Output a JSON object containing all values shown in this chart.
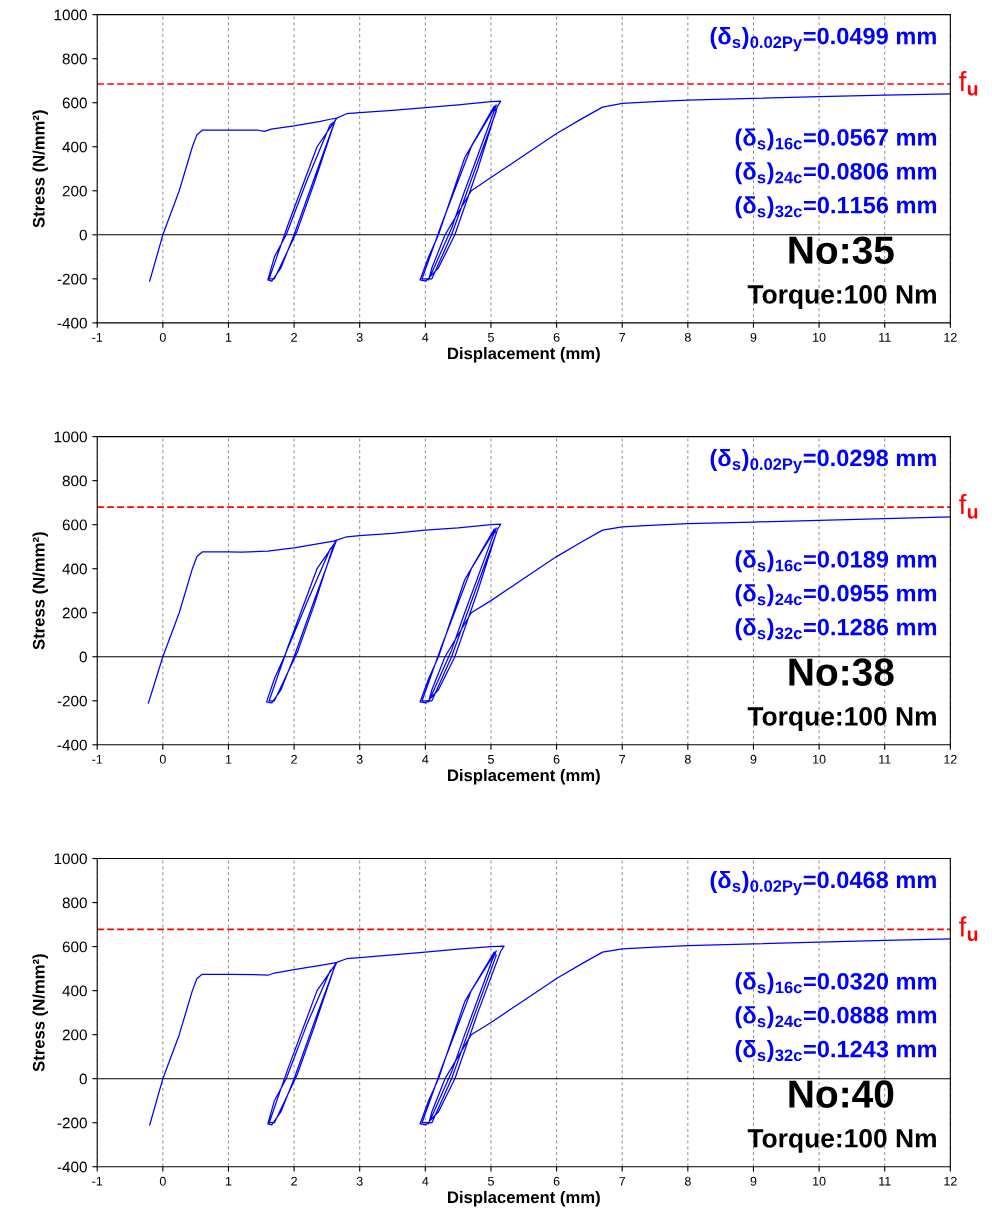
{
  "chart_data": [
    {
      "type": "line",
      "xlabel": "Displacement (mm)",
      "ylabel": "Stress (N/mm²)",
      "xlim": [
        -1,
        12
      ],
      "xticks": [
        -1,
        0,
        1,
        2,
        3,
        4,
        5,
        6,
        7,
        8,
        9,
        10,
        11,
        12
      ],
      "ylim": [
        -400,
        1000
      ],
      "yticks": [
        -400,
        -200,
        0,
        200,
        400,
        600,
        800,
        1000
      ],
      "grid": "x",
      "legend": false,
      "series": [
        {
          "color": "#0000ff",
          "x": [
            -0.2,
            0,
            0.25,
            0.45,
            0.52,
            0.6,
            1.0,
            1.45,
            1.55,
            1.65,
            2.0,
            2.4,
            2.55,
            2.65,
            2.62,
            2.3,
            2.0,
            1.8,
            1.66,
            1.6,
            1.7,
            1.88,
            2.2,
            2.55,
            2.62,
            2.3,
            2.05,
            1.7,
            1.62,
            1.9,
            2.35,
            2.65,
            2.8,
            3.0,
            3.5,
            4.0,
            4.5,
            5.0,
            5.15,
            5.1,
            4.8,
            4.45,
            4.2,
            4.01,
            3.92,
            4.05,
            4.2,
            4.6,
            5.05,
            5.08,
            4.7,
            4.4,
            4.1,
            3.95,
            4.25,
            4.7,
            5.08,
            5.02,
            4.6,
            4.4,
            4.05,
            4.1,
            4.3,
            4.5,
            4.7,
            5.0,
            5.5,
            6.0,
            6.4,
            6.7,
            7.0,
            7.5,
            8,
            9,
            10,
            11,
            12
          ],
          "values": [
            -210,
            0,
            200,
            400,
            455,
            475,
            475,
            475,
            470,
            480,
            495,
            515,
            525,
            530,
            515,
            250,
            0,
            -150,
            -210,
            -205,
            -100,
            0,
            250,
            500,
            515,
            230,
            20,
            -200,
            -200,
            40,
            400,
            530,
            550,
            555,
            565,
            578,
            590,
            605,
            607,
            585,
            300,
            0,
            -150,
            -210,
            -205,
            -100,
            0,
            350,
            585,
            560,
            250,
            0,
            -200,
            -200,
            50,
            400,
            590,
            540,
            200,
            30,
            -205,
            -150,
            0,
            100,
            200,
            260,
            360,
            460,
            530,
            580,
            597,
            605,
            612,
            620,
            628,
            634,
            640
          ]
        }
      ],
      "ref_lines": [
        {
          "axis": "y",
          "value": 685,
          "label": "f$_{u}$",
          "color": "#ff0000",
          "line_style": "dashed"
        },
        {
          "axis": "y",
          "value": 0,
          "color": "#000000",
          "line_style": "solid"
        }
      ],
      "annotations": [
        "(δ$_{s}$)$_{0.02Py}$=0.0499 mm",
        "(δ$_{s}$)$_{16c}$=0.0567 mm",
        "(δ$_{s}$)$_{24c}$=0.0806 mm",
        "(δ$_{s}$)$_{32c}$=0.1156 mm",
        "No:35",
        "Torque:100 Nm"
      ]
    },
    {
      "type": "line",
      "xlabel": "Displacement (mm)",
      "ylabel": "Stress (N/mm²)",
      "xlim": [
        -1,
        12
      ],
      "xticks": [
        -1,
        0,
        1,
        2,
        3,
        4,
        5,
        6,
        7,
        8,
        9,
        10,
        11,
        12
      ],
      "ylim": [
        -400,
        1000
      ],
      "yticks": [
        -400,
        -200,
        0,
        200,
        400,
        600,
        800,
        1000
      ],
      "grid": "x",
      "legend": false,
      "series": [
        {
          "color": "#0000ff",
          "x": [
            -0.22,
            0,
            0.25,
            0.45,
            0.52,
            0.6,
            1.0,
            1.2,
            1.6,
            2.0,
            2.4,
            2.6,
            2.65,
            2.62,
            2.3,
            2.0,
            1.8,
            1.66,
            1.58,
            1.7,
            1.85,
            2.2,
            2.55,
            2.6,
            2.3,
            2.05,
            1.7,
            1.62,
            1.9,
            2.35,
            2.65,
            2.8,
            3.0,
            3.5,
            4.0,
            4.5,
            5.0,
            5.15,
            5.1,
            4.8,
            4.45,
            4.2,
            4.01,
            3.92,
            4.05,
            4.2,
            4.6,
            5.05,
            5.08,
            4.7,
            4.4,
            4.1,
            3.95,
            4.25,
            4.7,
            5.08,
            5.02,
            4.6,
            4.4,
            4.05,
            4.1,
            4.3,
            4.5,
            4.7,
            5.0,
            5.5,
            6.0,
            6.4,
            6.7,
            7.0,
            7.5,
            8,
            9,
            10,
            11,
            12
          ],
          "values": [
            -210,
            0,
            200,
            400,
            455,
            476,
            476,
            475,
            480,
            495,
            515,
            525,
            530,
            510,
            250,
            0,
            -150,
            -210,
            -205,
            -100,
            0,
            250,
            490,
            505,
            230,
            20,
            -200,
            -200,
            40,
            400,
            530,
            545,
            550,
            560,
            575,
            585,
            600,
            602,
            580,
            300,
            0,
            -150,
            -210,
            -205,
            -100,
            0,
            350,
            580,
            560,
            250,
            0,
            -200,
            -200,
            50,
            400,
            585,
            540,
            200,
            30,
            -205,
            -150,
            0,
            100,
            200,
            255,
            355,
            455,
            525,
            575,
            590,
            598,
            605,
            612,
            620,
            628,
            635
          ]
        }
      ],
      "ref_lines": [
        {
          "axis": "y",
          "value": 680,
          "label": "f$_{u}$",
          "color": "#ff0000",
          "line_style": "dashed"
        },
        {
          "axis": "y",
          "value": 0,
          "color": "#000000",
          "line_style": "solid"
        }
      ],
      "annotations": [
        "(δ$_{s}$)$_{0.02Py}$=0.0298 mm",
        "(δ$_{s}$)$_{16c}$=0.0189 mm",
        "(δ$_{s}$)$_{24c}$=0.0955 mm",
        "(δ$_{s}$)$_{32c}$=0.1286 mm",
        "No:38",
        "Torque:100 Nm"
      ]
    },
    {
      "type": "line",
      "xlabel": "Displacement (mm)",
      "ylabel": "Stress (N/mm²)",
      "xlim": [
        -1,
        12
      ],
      "xticks": [
        -1,
        0,
        1,
        2,
        3,
        4,
        5,
        6,
        7,
        8,
        9,
        10,
        11,
        12
      ],
      "ylim": [
        -400,
        1000
      ],
      "yticks": [
        -400,
        -200,
        0,
        200,
        400,
        600,
        800,
        1000
      ],
      "grid": "x",
      "legend": false,
      "series": [
        {
          "color": "#0000ff",
          "x": [
            -0.2,
            0,
            0.25,
            0.45,
            0.52,
            0.6,
            1.0,
            1.5,
            1.6,
            1.7,
            2.0,
            2.4,
            2.6,
            2.65,
            2.62,
            2.3,
            2.0,
            1.8,
            1.66,
            1.6,
            1.7,
            1.88,
            2.2,
            2.55,
            2.62,
            2.3,
            2.05,
            1.7,
            1.62,
            1.9,
            2.35,
            2.65,
            2.8,
            3.0,
            3.5,
            4.0,
            4.5,
            5.0,
            5.2,
            5.15,
            4.8,
            4.45,
            4.2,
            4.01,
            3.92,
            4.05,
            4.2,
            4.6,
            5.05,
            5.08,
            4.7,
            4.4,
            4.1,
            3.95,
            4.25,
            4.7,
            5.08,
            5.02,
            4.6,
            4.4,
            4.05,
            4.1,
            4.3,
            4.5,
            4.7,
            5.0,
            5.5,
            6.0,
            6.4,
            6.7,
            7.0,
            7.5,
            8,
            9,
            10,
            11,
            12
          ],
          "values": [
            -210,
            0,
            200,
            400,
            455,
            474,
            474,
            472,
            470,
            480,
            495,
            515,
            525,
            528,
            510,
            250,
            0,
            -150,
            -210,
            -205,
            -100,
            0,
            250,
            490,
            510,
            230,
            20,
            -200,
            -200,
            40,
            400,
            528,
            545,
            550,
            562,
            575,
            588,
            600,
            602,
            580,
            300,
            0,
            -150,
            -210,
            -205,
            -100,
            0,
            350,
            575,
            560,
            250,
            0,
            -200,
            -200,
            50,
            400,
            580,
            540,
            200,
            30,
            -205,
            -150,
            0,
            100,
            200,
            255,
            355,
            455,
            525,
            575,
            590,
            598,
            605,
            612,
            620,
            628,
            635
          ]
        }
      ],
      "ref_lines": [
        {
          "axis": "y",
          "value": 678,
          "label": "f$_{u}$",
          "color": "#ff0000",
          "line_style": "dashed"
        },
        {
          "axis": "y",
          "value": 0,
          "color": "#000000",
          "line_style": "solid"
        }
      ],
      "annotations": [
        "(δ$_{s}$)$_{0.02Py}$=0.0468 mm",
        "(δ$_{s}$)$_{16c}$=0.0320 mm",
        "(δ$_{s}$)$_{24c}$=0.0888 mm",
        "(δ$_{s}$)$_{32c}$=0.1243 mm",
        "No:40",
        "Torque:100 Nm"
      ]
    }
  ]
}
